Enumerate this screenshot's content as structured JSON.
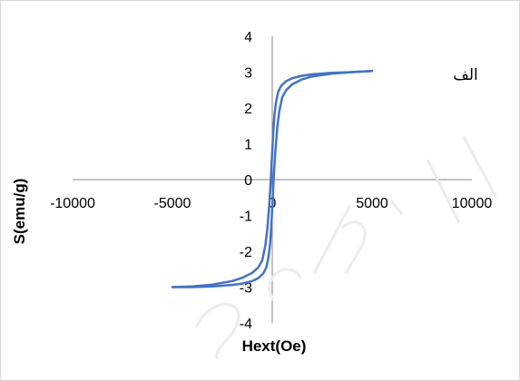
{
  "chart_data": {
    "type": "line",
    "title": "",
    "xlabel": "Hext(Oe)",
    "ylabel": "S(emu/g)",
    "annotation": "الف",
    "xlim": [
      -10000,
      10000
    ],
    "ylim": [
      -4,
      4
    ],
    "x_ticks": [
      "-10000",
      "-5000",
      "0",
      "5000",
      "10000"
    ],
    "y_ticks": [
      "4",
      "3",
      "2",
      "1",
      "0",
      "-1",
      "-2",
      "-3",
      "-4"
    ],
    "grid": false,
    "legend": "none",
    "colors": {
      "series": "#4472c4",
      "axis": "#868686"
    },
    "series": [
      {
        "x": [
          -5000,
          -4000,
          -3000,
          -2000,
          -1500,
          -1000,
          -700,
          -500,
          -350,
          -250,
          -150,
          -80,
          0,
          60,
          120,
          200,
          300,
          450,
          700,
          1000,
          1500,
          2000,
          3000,
          4000,
          5000
        ],
        "y": [
          -3.0,
          -2.98,
          -2.93,
          -2.83,
          -2.74,
          -2.6,
          -2.45,
          -2.25,
          -1.85,
          -1.4,
          -0.7,
          -0.1,
          0.8,
          1.4,
          1.85,
          2.2,
          2.45,
          2.62,
          2.75,
          2.83,
          2.9,
          2.94,
          2.98,
          3.0,
          3.03
        ]
      },
      {
        "x": [
          5000,
          4000,
          3000,
          2000,
          1500,
          1000,
          700,
          500,
          350,
          250,
          150,
          80,
          0,
          -60,
          -120,
          -200,
          -300,
          -450,
          -700,
          -1000,
          -1500,
          -2000,
          -3000,
          -4000,
          -5000
        ],
        "y": [
          3.03,
          3.0,
          2.96,
          2.88,
          2.8,
          2.66,
          2.5,
          2.3,
          1.9,
          1.45,
          0.75,
          0.15,
          -0.8,
          -1.4,
          -1.85,
          -2.2,
          -2.45,
          -2.62,
          -2.75,
          -2.83,
          -2.9,
          -2.94,
          -2.98,
          -3.0,
          -3.0
        ]
      }
    ]
  }
}
